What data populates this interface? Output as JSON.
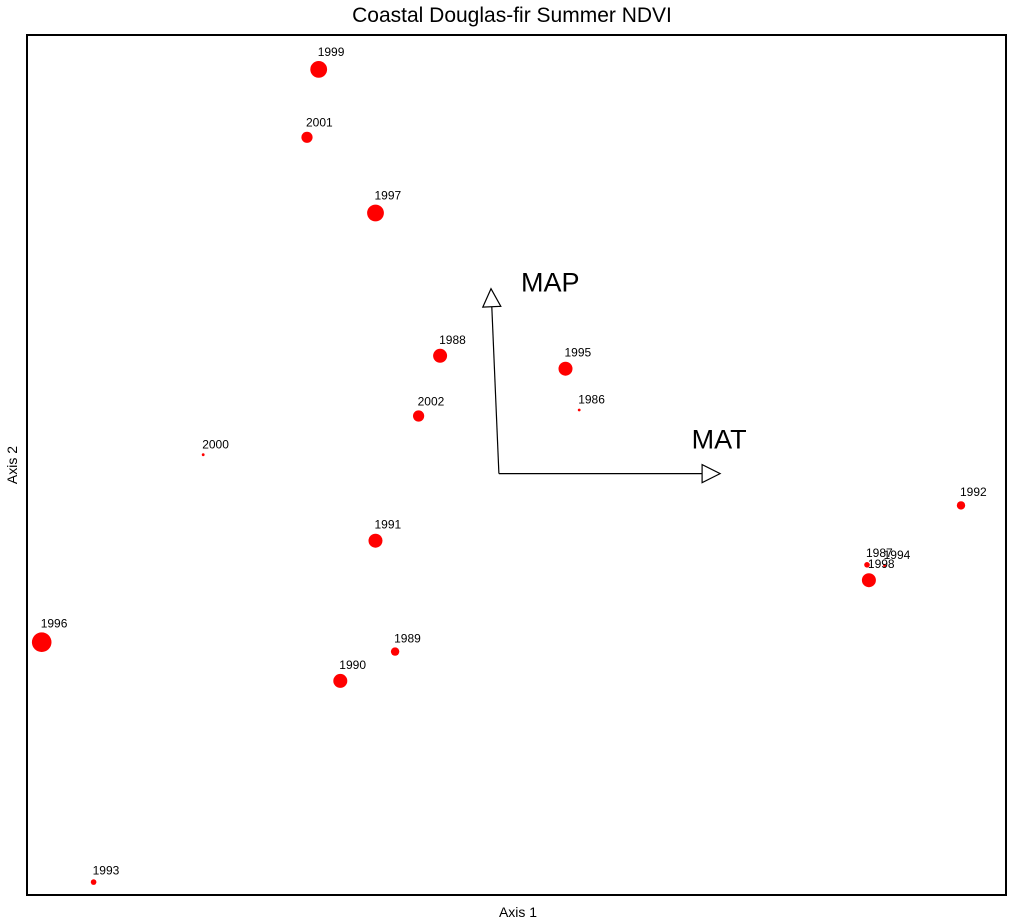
{
  "chart_data": {
    "type": "scatter",
    "title": "Coastal Douglas-fir Summer NDVI",
    "xlabel": "Axis 1",
    "ylabel": "Axis 2",
    "grid": false,
    "legend": "none",
    "xlim": [
      0,
      100
    ],
    "ylim": [
      0,
      100
    ],
    "marker_color": "#ff0000",
    "points": [
      {
        "label": "1999",
        "x": 29.8,
        "y": 96.0,
        "size": 3
      },
      {
        "label": "2001",
        "x": 28.6,
        "y": 88.1,
        "size": 2
      },
      {
        "label": "1997",
        "x": 35.6,
        "y": 79.3,
        "size": 3
      },
      {
        "label": "1988",
        "x": 42.2,
        "y": 62.7,
        "size": 2.5
      },
      {
        "label": "1995",
        "x": 55.0,
        "y": 61.2,
        "size": 2.5
      },
      {
        "label": "1986",
        "x": 56.4,
        "y": 56.4,
        "size": 0.5
      },
      {
        "label": "2002",
        "x": 40.0,
        "y": 55.7,
        "size": 2
      },
      {
        "label": "2000",
        "x": 18.0,
        "y": 51.2,
        "size": 0.5
      },
      {
        "label": "1992",
        "x": 95.4,
        "y": 45.3,
        "size": 1.5
      },
      {
        "label": "1991",
        "x": 35.6,
        "y": 41.2,
        "size": 2.5
      },
      {
        "label": "1987",
        "x": 85.8,
        "y": 38.4,
        "size": 1
      },
      {
        "label": "1994",
        "x": 87.6,
        "y": 38.3,
        "size": 0.5
      },
      {
        "label": "1998",
        "x": 86.0,
        "y": 36.6,
        "size": 2.5
      },
      {
        "label": "1996",
        "x": 1.5,
        "y": 29.4,
        "size": 3.5
      },
      {
        "label": "1989",
        "x": 37.6,
        "y": 28.3,
        "size": 1.5
      },
      {
        "label": "1990",
        "x": 32.0,
        "y": 24.9,
        "size": 2.5
      },
      {
        "label": "1993",
        "x": 6.8,
        "y": 1.5,
        "size": 1
      }
    ],
    "vectors": [
      {
        "label": "MAP",
        "x": -0.8,
        "y": 21.5
      },
      {
        "label": "MAT",
        "x": 22.6,
        "y": 0.0
      }
    ],
    "vector_origin": {
      "x": 48.2,
      "y": 49.0
    }
  }
}
